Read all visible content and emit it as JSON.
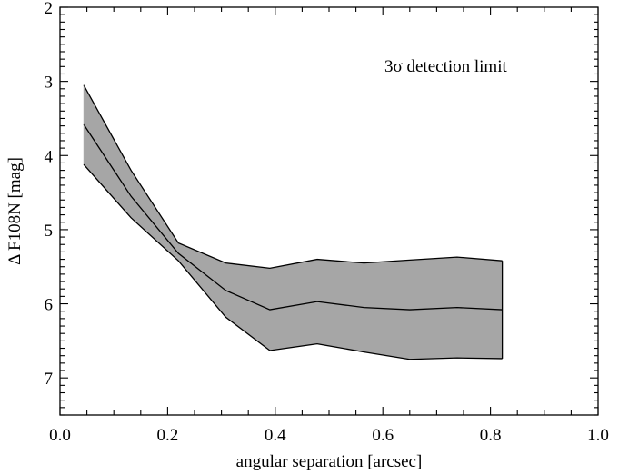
{
  "chart_data": {
    "type": "area",
    "title": "",
    "xlabel": "angular separation [arcsec]",
    "ylabel": "Δ F108N [mag]",
    "xlim": [
      0.0,
      1.0
    ],
    "ylim": [
      7.5,
      2.0
    ],
    "y_inverted": true,
    "grid": false,
    "x_major_ticks": [
      0.0,
      0.2,
      0.4,
      0.6,
      0.8,
      1.0
    ],
    "x_tick_labels": [
      "0.0",
      "0.2",
      "0.4",
      "0.6",
      "0.8",
      "1.0"
    ],
    "y_major_ticks": [
      2,
      3,
      4,
      5,
      6,
      7
    ],
    "y_tick_labels": [
      "2",
      "3",
      "4",
      "5",
      "6",
      "7"
    ],
    "annotation": "3σ detection limit",
    "x": [
      0.044,
      0.132,
      0.22,
      0.308,
      0.39,
      0.478,
      0.565,
      0.65,
      0.738,
      0.822
    ],
    "series": [
      {
        "role": "upper_bound",
        "values": [
          3.05,
          4.2,
          5.18,
          5.45,
          5.52,
          5.4,
          5.45,
          5.41,
          5.37,
          5.42
        ]
      },
      {
        "role": "median",
        "values": [
          3.58,
          4.55,
          5.32,
          5.82,
          6.08,
          5.97,
          6.05,
          6.08,
          6.05,
          6.08
        ]
      },
      {
        "role": "lower_bound",
        "values": [
          4.12,
          4.84,
          5.42,
          6.18,
          6.63,
          6.54,
          6.65,
          6.75,
          6.73,
          6.74
        ]
      }
    ],
    "band_color": "#a6a6a6",
    "line_color": "#000000"
  }
}
